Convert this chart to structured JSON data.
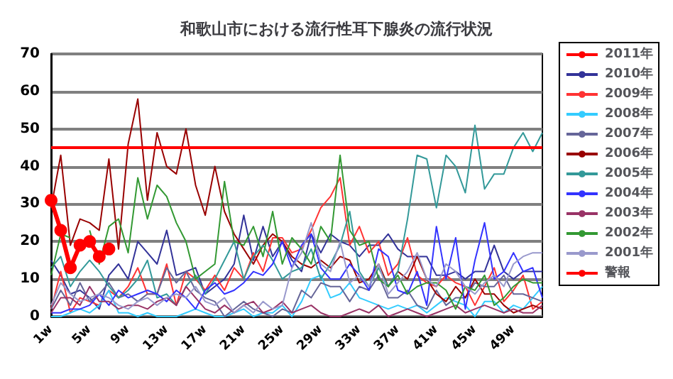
{
  "chart_data": {
    "type": "line",
    "title": "和歌山市における流行性耳下腺炎の流行状況",
    "categories": [
      "1w",
      null,
      null,
      null,
      "5w",
      null,
      null,
      null,
      "9w",
      null,
      null,
      null,
      "13w",
      null,
      null,
      null,
      "17w",
      null,
      null,
      null,
      "21w",
      null,
      null,
      null,
      "25w",
      null,
      null,
      null,
      "29w",
      null,
      null,
      null,
      "33w",
      null,
      null,
      null,
      "37w",
      null,
      null,
      null,
      "41w",
      null,
      null,
      null,
      "45w",
      null,
      null,
      null,
      "49w",
      null,
      null,
      null
    ],
    "ylim": [
      0,
      70
    ],
    "yticks": [
      0,
      10,
      20,
      30,
      40,
      50,
      60,
      70
    ],
    "grid": "y",
    "legend": "right",
    "marker": "none",
    "ref_lines": [
      {
        "axis": "y",
        "value": 45,
        "label": "警報",
        "color": "#ff0000"
      }
    ],
    "series": [
      {
        "name": "2011年",
        "color": "#ff0000",
        "marker": "circle",
        "values": [
          31,
          23,
          13,
          19,
          20,
          16,
          18,
          null,
          null,
          null,
          null,
          null,
          null,
          null,
          null,
          null,
          null,
          null,
          null,
          null,
          null,
          null,
          null,
          null,
          null,
          null,
          null,
          null,
          null,
          null,
          null,
          null,
          null,
          null,
          null,
          null,
          null,
          null,
          null,
          null,
          null,
          null,
          null,
          null,
          null,
          null,
          null,
          null,
          null,
          null,
          null,
          null
        ]
      },
      {
        "name": "2010年",
        "color": "#333399",
        "values": [
          15,
          11,
          6,
          7,
          5,
          2,
          11,
          14,
          10,
          20,
          17,
          14,
          23,
          11,
          12,
          13,
          6,
          8,
          10,
          14,
          27,
          15,
          24,
          16,
          20,
          15,
          12,
          22,
          17,
          22,
          20,
          19,
          16,
          19,
          19,
          22,
          18,
          16,
          16,
          16,
          11,
          11,
          12,
          10,
          12,
          12,
          19,
          12,
          10,
          12,
          12,
          12
        ]
      },
      {
        "name": "2009年",
        "color": "#ff3333",
        "values": [
          2,
          12,
          1,
          5,
          4,
          3,
          7,
          5,
          8,
          13,
          6,
          6,
          14,
          3,
          12,
          10,
          7,
          11,
          7,
          13,
          10,
          17,
          12,
          21,
          21,
          17,
          18,
          23,
          29,
          32,
          37,
          19,
          24,
          17,
          20,
          11,
          14,
          21,
          11,
          9,
          8,
          11,
          9,
          8,
          3,
          8,
          13,
          4,
          7,
          11,
          2,
          4
        ]
      },
      {
        "name": "2008年",
        "color": "#33ccff",
        "values": [
          0,
          0,
          1,
          2,
          1,
          3,
          7,
          1,
          1,
          0,
          1,
          0,
          0,
          0,
          1,
          2,
          1,
          0,
          0,
          1,
          2,
          0,
          1,
          1,
          3,
          0,
          4,
          10,
          11,
          5,
          6,
          9,
          5,
          4,
          3,
          2,
          3,
          2,
          3,
          1,
          3,
          5,
          4,
          3,
          0,
          4,
          4,
          1,
          3,
          2,
          5,
          8
        ]
      },
      {
        "name": "2007年",
        "color": "#666699",
        "values": [
          2,
          7,
          3,
          9,
          4,
          6,
          9,
          5,
          6,
          4,
          6,
          6,
          13,
          9,
          12,
          7,
          5,
          4,
          0,
          2,
          4,
          2,
          1,
          0,
          2,
          1,
          7,
          5,
          9,
          8,
          8,
          4,
          8,
          7,
          11,
          5,
          5,
          7,
          3,
          2,
          7,
          3,
          5,
          5,
          9,
          8,
          8,
          11,
          6,
          6,
          5,
          4
        ]
      },
      {
        "name": "2006年",
        "color": "#990000",
        "values": [
          29,
          43,
          19,
          26,
          25,
          23,
          42,
          18,
          46,
          58,
          31,
          49,
          40,
          38,
          50,
          35,
          27,
          40,
          28,
          22,
          18,
          14,
          19,
          22,
          20,
          16,
          14,
          13,
          15,
          13,
          16,
          15,
          9,
          10,
          14,
          8,
          12,
          10,
          16,
          10,
          6,
          4,
          8,
          5,
          10,
          6,
          6,
          3,
          1,
          2,
          3,
          2
        ]
      },
      {
        "name": "2005年",
        "color": "#339999",
        "values": [
          13,
          16,
          8,
          12,
          15,
          12,
          8,
          5,
          7,
          10,
          15,
          5,
          6,
          3,
          8,
          11,
          6,
          10,
          15,
          20,
          10,
          16,
          19,
          15,
          10,
          12,
          13,
          18,
          10,
          14,
          19,
          28,
          12,
          8,
          13,
          8,
          12,
          26,
          43,
          42,
          29,
          43,
          40,
          33,
          51,
          34,
          38,
          38,
          45,
          49,
          44,
          49
        ]
      },
      {
        "name": "2004年",
        "color": "#3333ff",
        "values": [
          1,
          1,
          2,
          2,
          3,
          6,
          3,
          7,
          5,
          6,
          7,
          6,
          4,
          7,
          5,
          2,
          7,
          9,
          6,
          7,
          9,
          12,
          11,
          14,
          20,
          13,
          19,
          22,
          13,
          10,
          10,
          14,
          11,
          7,
          18,
          16,
          7,
          6,
          12,
          3,
          24,
          10,
          21,
          2,
          15,
          25,
          10,
          12,
          17,
          12,
          13,
          5
        ]
      },
      {
        "name": "2003年",
        "color": "#993366",
        "values": [
          1,
          5,
          5,
          3,
          8,
          4,
          4,
          2,
          3,
          3,
          2,
          4,
          5,
          3,
          8,
          5,
          2,
          1,
          3,
          1,
          3,
          4,
          1,
          2,
          4,
          1,
          2,
          3,
          1,
          0,
          0,
          1,
          2,
          1,
          3,
          0,
          1,
          2,
          1,
          0,
          1,
          2,
          3,
          1,
          2,
          3,
          2,
          1,
          2,
          1,
          1,
          3
        ]
      },
      {
        "name": "2002年",
        "color": "#339933",
        "values": [
          11,
          22,
          21,
          null,
          23,
          14,
          24,
          26,
          17,
          37,
          26,
          35,
          32,
          25,
          20,
          10,
          12,
          14,
          36,
          20,
          19,
          24,
          16,
          28,
          14,
          21,
          18,
          14,
          24,
          20,
          43,
          23,
          19,
          20,
          10,
          8,
          11,
          6,
          8,
          9,
          9,
          7,
          2,
          8,
          7,
          11,
          3,
          5,
          8,
          10,
          9,
          9
        ]
      },
      {
        "name": "2001年",
        "color": "#9999cc",
        "values": [
          3,
          9,
          6,
          4,
          5,
          6,
          5,
          3,
          2,
          4,
          5,
          3,
          5,
          6,
          5,
          8,
          4,
          3,
          5,
          1,
          3,
          1,
          4,
          2,
          3,
          13,
          17,
          25,
          14,
          12,
          20,
          9,
          11,
          8,
          14,
          6,
          9,
          12,
          17,
          10,
          8,
          14,
          12,
          8,
          6,
          9,
          11,
          8,
          14,
          16,
          17,
          17
        ]
      }
    ]
  }
}
